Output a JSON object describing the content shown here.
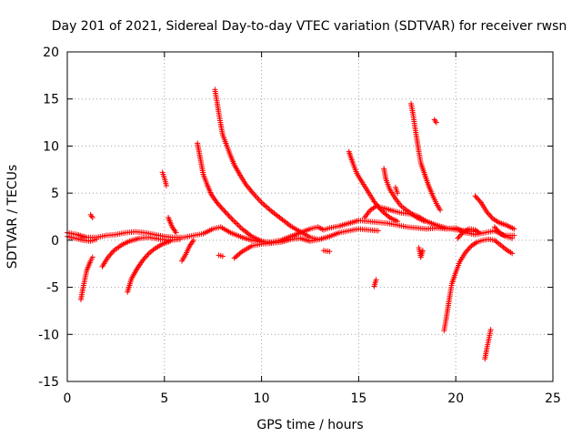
{
  "colors": {
    "series": "#ff0000",
    "grid": "#a0a0a0",
    "axis": "#000000",
    "background": "#ffffff"
  },
  "chart_data": {
    "type": "scatter",
    "title": "Day 201 of 2021, Sidereal Day-to-day VTEC variation (SDTVAR) for receiver rwsn",
    "xlabel": "GPS time / hours",
    "ylabel": "SDTVAR / TECUs",
    "xlim": [
      0,
      25
    ],
    "ylim": [
      -15,
      20
    ],
    "grid": true,
    "legend": "none",
    "x_ticks": [
      0,
      5,
      10,
      15,
      20,
      25
    ],
    "y_ticks": [
      -15,
      -10,
      -5,
      0,
      5,
      10,
      15,
      20
    ],
    "x_tick_labels": [
      "0",
      "5",
      "10",
      "15",
      "20",
      "25"
    ],
    "y_tick_labels": [
      "-15",
      "-10",
      "-5",
      "0",
      "5",
      "10",
      "15",
      "20"
    ],
    "marker": "+",
    "series": [
      {
        "name": "sdtvar",
        "segments": [
          [
            [
              0.0,
              0.8
            ],
            [
              0.5,
              0.6
            ],
            [
              1.0,
              0.3
            ],
            [
              1.5,
              0.3
            ],
            [
              2.0,
              0.5
            ],
            [
              2.5,
              0.6
            ],
            [
              3.0,
              0.8
            ],
            [
              3.5,
              0.9
            ],
            [
              4.0,
              0.8
            ],
            [
              4.5,
              0.6
            ],
            [
              5.0,
              0.4
            ],
            [
              5.5,
              0.3
            ],
            [
              6.0,
              0.3
            ],
            [
              6.5,
              0.5
            ],
            [
              7.0,
              0.7
            ],
            [
              7.5,
              1.2
            ],
            [
              7.9,
              1.4
            ],
            [
              8.4,
              0.8
            ],
            [
              9.0,
              0.3
            ],
            [
              9.5,
              0.0
            ],
            [
              10.0,
              -0.2
            ],
            [
              10.5,
              -0.2
            ],
            [
              11.0,
              0.0
            ],
            [
              11.5,
              0.4
            ],
            [
              12.0,
              0.8
            ],
            [
              12.5,
              1.2
            ],
            [
              12.9,
              1.4
            ],
            [
              13.2,
              1.1
            ],
            [
              13.5,
              1.3
            ],
            [
              14.0,
              1.5
            ],
            [
              14.5,
              1.8
            ],
            [
              15.0,
              2.1
            ],
            [
              15.5,
              2.0
            ],
            [
              16.0,
              1.9
            ],
            [
              16.5,
              1.8
            ],
            [
              17.0,
              1.6
            ],
            [
              17.5,
              1.4
            ],
            [
              18.0,
              1.3
            ],
            [
              18.5,
              1.2
            ],
            [
              19.0,
              1.3
            ],
            [
              19.5,
              1.2
            ],
            [
              20.0,
              1.3
            ],
            [
              20.5,
              0.8
            ],
            [
              21.0,
              0.6
            ],
            [
              21.5,
              0.8
            ],
            [
              22.0,
              1.0
            ],
            [
              22.5,
              0.5
            ],
            [
              23.0,
              0.5
            ]
          ],
          [
            [
              0.0,
              0.4
            ],
            [
              0.4,
              0.2
            ],
            [
              0.8,
              0.0
            ],
            [
              1.2,
              -0.1
            ],
            [
              1.5,
              0.1
            ]
          ],
          [
            [
              0.7,
              -6.3
            ],
            [
              0.8,
              -5.2
            ],
            [
              0.9,
              -4.2
            ],
            [
              1.0,
              -3.2
            ],
            [
              1.2,
              -2.2
            ],
            [
              1.3,
              -1.8
            ]
          ],
          [
            [
              1.2,
              2.7
            ],
            [
              1.3,
              2.4
            ]
          ],
          [
            [
              1.8,
              -2.8
            ],
            [
              2.1,
              -1.8
            ],
            [
              2.4,
              -1.1
            ],
            [
              2.8,
              -0.5
            ],
            [
              3.2,
              -0.1
            ],
            [
              3.7,
              0.2
            ],
            [
              4.2,
              0.3
            ],
            [
              4.8,
              0.1
            ],
            [
              5.3,
              0.0
            ],
            [
              5.8,
              0.1
            ]
          ],
          [
            [
              3.1,
              -5.5
            ],
            [
              3.3,
              -4.1
            ],
            [
              3.6,
              -3.0
            ],
            [
              3.9,
              -2.1
            ],
            [
              4.2,
              -1.4
            ],
            [
              4.5,
              -0.9
            ],
            [
              4.9,
              -0.4
            ],
            [
              5.3,
              -0.1
            ]
          ],
          [
            [
              4.9,
              7.2
            ],
            [
              5.0,
              6.6
            ],
            [
              5.1,
              5.8
            ]
          ],
          [
            [
              5.2,
              2.4
            ],
            [
              5.4,
              1.4
            ],
            [
              5.6,
              0.8
            ]
          ],
          [
            [
              5.9,
              -2.2
            ],
            [
              6.1,
              -1.5
            ],
            [
              6.3,
              -0.6
            ],
            [
              6.5,
              0.0
            ]
          ],
          [
            [
              6.7,
              10.3
            ],
            [
              6.8,
              9.2
            ],
            [
              6.9,
              8.1
            ],
            [
              7.0,
              7.0
            ],
            [
              7.2,
              5.9
            ],
            [
              7.4,
              4.9
            ],
            [
              7.7,
              4.0
            ],
            [
              8.0,
              3.3
            ],
            [
              8.5,
              2.2
            ],
            [
              9.0,
              1.2
            ],
            [
              9.5,
              0.4
            ],
            [
              10.0,
              -0.1
            ],
            [
              10.5,
              -0.3
            ]
          ],
          [
            [
              7.6,
              16.0
            ],
            [
              7.7,
              14.8
            ],
            [
              7.8,
              13.5
            ],
            [
              7.9,
              12.3
            ],
            [
              8.0,
              11.2
            ],
            [
              8.2,
              10.1
            ],
            [
              8.4,
              9.0
            ],
            [
              8.6,
              8.0
            ],
            [
              8.9,
              6.9
            ],
            [
              9.2,
              5.9
            ],
            [
              9.6,
              4.9
            ],
            [
              10.0,
              4.0
            ],
            [
              10.5,
              3.1
            ],
            [
              11.0,
              2.3
            ],
            [
              11.5,
              1.5
            ],
            [
              12.0,
              0.9
            ],
            [
              12.5,
              0.3
            ],
            [
              12.9,
              0.1
            ]
          ],
          [
            [
              7.8,
              -1.6
            ],
            [
              8.0,
              -1.7
            ]
          ],
          [
            [
              8.6,
              -1.9
            ],
            [
              9.0,
              -1.2
            ],
            [
              9.5,
              -0.6
            ],
            [
              10.0,
              -0.4
            ],
            [
              10.5,
              -0.3
            ],
            [
              11.0,
              -0.2
            ],
            [
              11.5,
              0.1
            ],
            [
              12.0,
              0.2
            ],
            [
              12.5,
              -0.1
            ],
            [
              13.0,
              0.1
            ],
            [
              13.5,
              0.4
            ],
            [
              14.0,
              0.8
            ],
            [
              14.5,
              1.0
            ],
            [
              15.0,
              1.2
            ],
            [
              15.5,
              1.1
            ],
            [
              16.0,
              1.0
            ]
          ],
          [
            [
              13.2,
              -1.1
            ],
            [
              13.5,
              -1.2
            ]
          ],
          [
            [
              14.5,
              9.4
            ],
            [
              14.7,
              8.2
            ],
            [
              14.9,
              7.1
            ],
            [
              15.2,
              6.1
            ],
            [
              15.5,
              5.1
            ],
            [
              15.8,
              4.1
            ],
            [
              16.2,
              3.1
            ],
            [
              16.6,
              2.4
            ],
            [
              17.0,
              2.0
            ]
          ],
          [
            [
              15.3,
              2.4
            ],
            [
              15.6,
              3.2
            ],
            [
              15.9,
              3.6
            ],
            [
              16.3,
              3.4
            ],
            [
              16.8,
              3.1
            ],
            [
              17.2,
              2.9
            ],
            [
              17.6,
              2.8
            ],
            [
              18.0,
              2.6
            ],
            [
              18.5,
              2.0
            ],
            [
              19.0,
              1.6
            ],
            [
              19.5,
              1.3
            ],
            [
              20.0,
              1.1
            ],
            [
              20.5,
              1.0
            ],
            [
              21.0,
              0.9
            ]
          ],
          [
            [
              15.8,
              -4.9
            ],
            [
              15.9,
              -4.2
            ]
          ],
          [
            [
              16.3,
              7.6
            ],
            [
              16.4,
              6.5
            ],
            [
              16.6,
              5.4
            ],
            [
              16.9,
              4.4
            ],
            [
              17.2,
              3.6
            ],
            [
              17.6,
              3.0
            ],
            [
              18.0,
              2.4
            ],
            [
              18.4,
              2.0
            ]
          ],
          [
            [
              16.9,
              5.6
            ],
            [
              17.0,
              5.0
            ]
          ],
          [
            [
              17.7,
              14.5
            ],
            [
              17.8,
              13.4
            ],
            [
              17.9,
              12.0
            ],
            [
              18.0,
              10.7
            ],
            [
              18.1,
              9.4
            ],
            [
              18.2,
              8.2
            ],
            [
              18.4,
              7.0
            ],
            [
              18.6,
              5.8
            ],
            [
              18.8,
              4.8
            ],
            [
              19.0,
              3.9
            ],
            [
              19.2,
              3.2
            ]
          ],
          [
            [
              18.1,
              -0.8
            ],
            [
              18.2,
              -1.8
            ],
            [
              18.3,
              -1.1
            ]
          ],
          [
            [
              18.9,
              12.8
            ],
            [
              19.0,
              12.5
            ]
          ],
          [
            [
              19.4,
              -9.6
            ],
            [
              19.5,
              -8.4
            ],
            [
              19.6,
              -7.1
            ],
            [
              19.7,
              -5.8
            ],
            [
              19.8,
              -4.6
            ],
            [
              20.0,
              -3.4
            ],
            [
              20.2,
              -2.3
            ],
            [
              20.5,
              -1.3
            ],
            [
              20.8,
              -0.6
            ],
            [
              21.1,
              -0.2
            ],
            [
              21.4,
              0.0
            ],
            [
              21.7,
              0.1
            ],
            [
              22.0,
              0.0
            ],
            [
              22.3,
              -0.5
            ],
            [
              22.6,
              -1.0
            ],
            [
              22.9,
              -1.4
            ]
          ],
          [
            [
              20.1,
              0.2
            ],
            [
              20.4,
              0.9
            ],
            [
              20.7,
              1.2
            ],
            [
              21.0,
              1.1
            ],
            [
              21.2,
              0.8
            ]
          ],
          [
            [
              21.0,
              4.7
            ],
            [
              21.3,
              4.0
            ],
            [
              21.6,
              3.0
            ],
            [
              21.9,
              2.3
            ],
            [
              22.2,
              1.9
            ],
            [
              22.6,
              1.6
            ],
            [
              23.0,
              1.2
            ]
          ],
          [
            [
              21.5,
              -12.6
            ],
            [
              21.6,
              -11.5
            ],
            [
              21.7,
              -10.5
            ],
            [
              21.8,
              -9.5
            ]
          ],
          [
            [
              22.0,
              1.4
            ],
            [
              22.3,
              0.7
            ],
            [
              22.6,
              0.4
            ],
            [
              22.9,
              0.2
            ]
          ]
        ]
      }
    ]
  }
}
